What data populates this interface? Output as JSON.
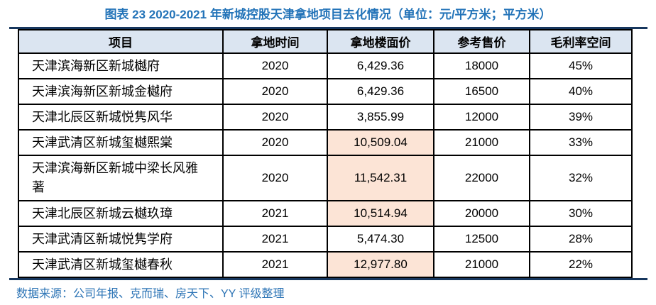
{
  "title": "图表 23 2020-2021 年新城控股天津拿地项目去化情况（单位：元/平方米；平方米）",
  "table": {
    "columns": [
      "项目",
      "拿地时间",
      "拿地楼面价",
      "参考售价",
      "毛利率空间"
    ],
    "rows": [
      {
        "project": "天津滨海新区新城樾府",
        "year": "2020",
        "floor_price": "6,429.36",
        "ref_price": "18000",
        "margin": "45%",
        "floor_price_highlight": false
      },
      {
        "project": "天津滨海新区新城金樾府",
        "year": "2020",
        "floor_price": "6,429.36",
        "ref_price": "16500",
        "margin": "40%",
        "floor_price_highlight": false
      },
      {
        "project": "天津北辰区新城悦隽风华",
        "year": "2020",
        "floor_price": "3,855.99",
        "ref_price": "12000",
        "margin": "39%",
        "floor_price_highlight": false
      },
      {
        "project": "天津武清区新城玺樾熙棠",
        "year": "2020",
        "floor_price": "10,509.04",
        "ref_price": "21000",
        "margin": "33%",
        "floor_price_highlight": true
      },
      {
        "project": "天津滨海新区新城中梁长风雅著",
        "year": "2020",
        "floor_price": "11,542.31",
        "ref_price": "22000",
        "margin": "32%",
        "floor_price_highlight": true
      },
      {
        "project": "天津北辰区新城云樾玖璋",
        "year": "2021",
        "floor_price": "10,514.94",
        "ref_price": "20000",
        "margin": "30%",
        "floor_price_highlight": true
      },
      {
        "project": "天津武清区新城悦隽学府",
        "year": "2021",
        "floor_price": "5,474.30",
        "ref_price": "12500",
        "margin": "28%",
        "floor_price_highlight": false
      },
      {
        "project": "天津武清区新城玺樾春秋",
        "year": "2021",
        "floor_price": "12,977.80",
        "ref_price": "21000",
        "margin": "22%",
        "floor_price_highlight": true
      }
    ]
  },
  "footer": {
    "source": "数据来源：公司年报、克而瑞、房天下、YY 评级整理"
  },
  "colors": {
    "title_blue": "#2273b8",
    "footer_blue": "#2e75b6",
    "rule_navy": "#17375e",
    "header_bg": "#dbe5f1",
    "highlight_peach": "#fce4d6",
    "table_border": "#000000"
  }
}
